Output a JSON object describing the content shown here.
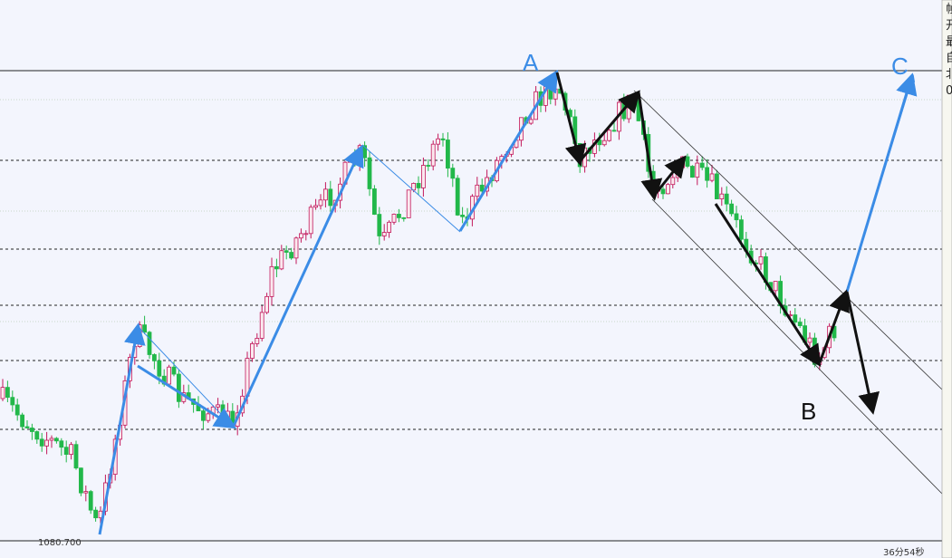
{
  "labels": {
    "a": "A",
    "b": "B",
    "c": "C"
  },
  "price_low": "1080.700",
  "timer": "36分54秒",
  "side_panel": [
    "帧",
    "开",
    "最",
    "自",
    "北",
    "0"
  ]
}
